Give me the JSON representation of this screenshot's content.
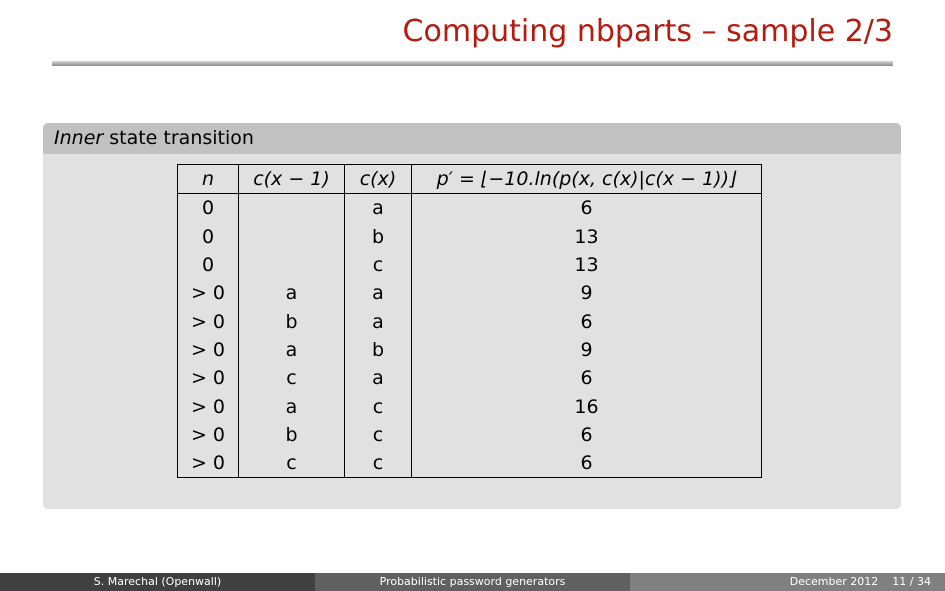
{
  "slide": {
    "title": "Computing nbparts – sample 2/3"
  },
  "block": {
    "title_em": "Inner",
    "title_rest": " state transition"
  },
  "table": {
    "headers": [
      "n",
      "c(x − 1)",
      "c(x)",
      "p′ = ⌊−10.ln(p(x, c(x)|c(x − 1))⌋"
    ],
    "rows": [
      [
        "0",
        "",
        "a",
        "6"
      ],
      [
        "0",
        "",
        "b",
        "13"
      ],
      [
        "0",
        "",
        "c",
        "13"
      ],
      [
        "> 0",
        "a",
        "a",
        "9"
      ],
      [
        "> 0",
        "b",
        "a",
        "6"
      ],
      [
        "> 0",
        "a",
        "b",
        "9"
      ],
      [
        "> 0",
        "c",
        "a",
        "6"
      ],
      [
        "> 0",
        "a",
        "c",
        "16"
      ],
      [
        "> 0",
        "b",
        "c",
        "6"
      ],
      [
        "> 0",
        "c",
        "c",
        "6"
      ]
    ]
  },
  "footer": {
    "author": "S. Marechal  (Openwall)",
    "talk": "Probabilistic password generators",
    "date": "December 2012",
    "page": "11 / 34"
  },
  "colors": {
    "title": "#b41c10",
    "block_header": "#c1c1c1",
    "block_body": "#e1e1e1"
  }
}
